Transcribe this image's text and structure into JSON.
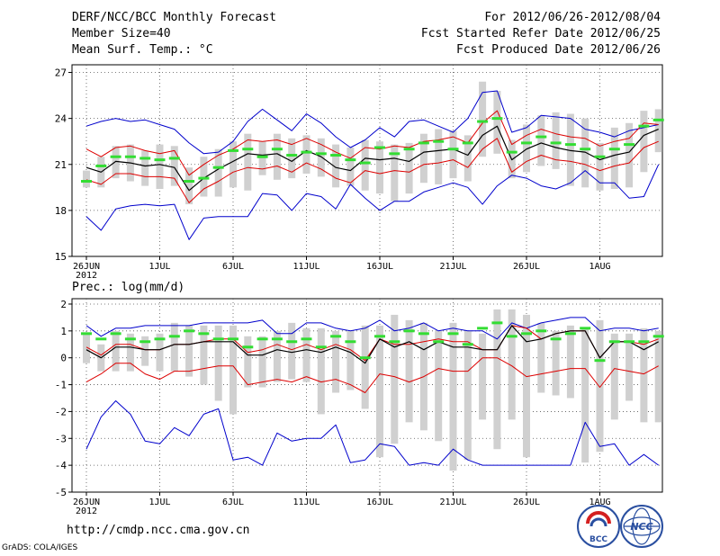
{
  "header": {
    "title": "DERF/NCC/BCC Monthly Forecast",
    "member_size": "Member Size=40",
    "variable": "Mean Surf. Temp.: °C",
    "period": "For 2012/06/26-2012/08/04",
    "fcst_started": "Fcst Started Refer Date 2012/06/25",
    "fcst_produced": "Fcst Produced Date 2012/06/26"
  },
  "footer": {
    "url": "http://cmdp.ncc.cma.gov.cn",
    "grads": "GrADS: COLA/IGES",
    "logo_left_text": "BCC",
    "logo_right_text": "NCC"
  },
  "colors": {
    "range": "#0000cc",
    "spread": "#dd0000",
    "mean": "#000000",
    "obs": "#33dd33",
    "box": "#d0d0d0",
    "grid": "#555555"
  },
  "chart_data": [
    {
      "type": "line",
      "title": "Mean Surf. Temp.: °C",
      "x_ticks": [
        "26JUN",
        "1JUL",
        "6JUL",
        "11JUL",
        "16JUL",
        "21JUL",
        "26JUL",
        "1AUG"
      ],
      "x_year_label": "2012",
      "ylim": [
        15,
        27.5
      ],
      "y_ticks": [
        15,
        18,
        21,
        24,
        27
      ],
      "days": 40,
      "max": [
        23.5,
        23.8,
        24.0,
        23.8,
        23.9,
        23.6,
        23.3,
        22.4,
        21.7,
        21.8,
        22.5,
        23.8,
        24.6,
        23.9,
        23.2,
        24.3,
        23.7,
        22.8,
        22.1,
        22.6,
        23.4,
        22.8,
        23.8,
        23.9,
        23.5,
        23.1,
        24.0,
        25.7,
        25.8,
        23.1,
        23.4,
        24.2,
        24.1,
        24.0,
        23.3,
        23.1,
        22.8,
        23.2,
        23.4,
        23.6
      ],
      "min": [
        17.6,
        16.7,
        18.1,
        18.3,
        18.4,
        18.3,
        18.4,
        16.1,
        17.5,
        17.6,
        17.6,
        17.6,
        19.1,
        19.0,
        18.0,
        19.1,
        18.9,
        18.1,
        19.7,
        18.8,
        18.0,
        18.6,
        18.6,
        19.2,
        19.5,
        19.8,
        19.5,
        18.4,
        19.6,
        20.3,
        20.1,
        19.6,
        19.4,
        19.8,
        20.6,
        19.8,
        19.8,
        18.8,
        18.9,
        21.0
      ],
      "upper": [
        22.0,
        21.5,
        22.1,
        22.2,
        21.9,
        21.7,
        21.9,
        20.3,
        21.0,
        21.6,
        22.0,
        22.6,
        22.5,
        22.6,
        22.3,
        22.7,
        22.3,
        21.8,
        21.4,
        22.1,
        22.0,
        22.2,
        22.1,
        22.5,
        22.6,
        22.8,
        22.4,
        23.7,
        24.5,
        22.3,
        22.9,
        23.3,
        23.0,
        22.8,
        22.7,
        22.2,
        22.5,
        22.7,
        23.7,
        23.6
      ],
      "mean": [
        20.8,
        20.5,
        21.2,
        21.1,
        20.9,
        21.0,
        20.8,
        19.3,
        20.1,
        20.7,
        21.2,
        21.7,
        21.6,
        21.7,
        21.2,
        21.9,
        21.5,
        20.8,
        20.6,
        21.4,
        21.3,
        21.4,
        21.2,
        21.8,
        21.9,
        22.0,
        21.6,
        22.9,
        23.5,
        21.3,
        22.0,
        22.4,
        22.1,
        21.9,
        21.8,
        21.3,
        21.6,
        21.8,
        22.9,
        23.3
      ],
      "lower": [
        20.0,
        19.7,
        20.4,
        20.4,
        20.2,
        20.2,
        20.1,
        18.5,
        19.4,
        19.9,
        20.5,
        20.8,
        20.7,
        20.9,
        20.5,
        21.1,
        20.7,
        20.1,
        19.8,
        20.6,
        20.4,
        20.6,
        20.5,
        21.0,
        21.1,
        21.3,
        20.8,
        22.0,
        22.7,
        20.5,
        21.2,
        21.6,
        21.3,
        21.2,
        21.0,
        20.6,
        20.9,
        21.1,
        22.1,
        22.5
      ],
      "box_top": [
        20.6,
        21.5,
        22.2,
        22.3,
        21.9,
        22.3,
        22.2,
        20.8,
        21.5,
        22.0,
        22.5,
        23.0,
        22.5,
        23.0,
        22.7,
        22.9,
        22.7,
        22.3,
        22.1,
        22.6,
        22.5,
        22.3,
        22.4,
        23.0,
        23.3,
        23.2,
        22.9,
        26.4,
        25.8,
        22.6,
        23.6,
        24.2,
        24.4,
        24.3,
        24.0,
        22.4,
        23.4,
        23.7,
        24.5,
        24.6
      ],
      "box_bottom": [
        19.5,
        19.5,
        20.1,
        19.9,
        19.6,
        19.4,
        19.6,
        18.4,
        18.9,
        18.9,
        19.5,
        19.3,
        20.3,
        20.0,
        20.1,
        20.4,
        20.2,
        19.5,
        19.6,
        19.3,
        19.1,
        18.6,
        19.1,
        19.8,
        19.7,
        20.1,
        19.9,
        21.5,
        21.7,
        20.1,
        20.5,
        20.9,
        20.7,
        19.6,
        19.5,
        19.3,
        19.4,
        19.5,
        20.5,
        21.8
      ],
      "obs": [
        19.9,
        20.9,
        21.5,
        21.5,
        21.4,
        21.3,
        21.4,
        19.9,
        20.1,
        20.8,
        21.9,
        22.0,
        21.5,
        22.0,
        21.6,
        21.8,
        21.7,
        21.6,
        21.3,
        21.1,
        22.1,
        21.7,
        22.0,
        22.4,
        22.5,
        22.0,
        22.4,
        23.8,
        24.0,
        21.8,
        22.4,
        22.8,
        22.4,
        22.3,
        22.0,
        21.5,
        22.0,
        22.3,
        23.5,
        23.9
      ]
    },
    {
      "type": "line",
      "title": "Prec.: log(mm/d)",
      "x_ticks": [
        "26JUN",
        "1JUL",
        "6JUL",
        "11JUL",
        "16JUL",
        "21JUL",
        "26JUL",
        "1AUG"
      ],
      "x_year_label": "2012",
      "ylim": [
        -5,
        2.2
      ],
      "y_ticks": [
        -5,
        -4,
        -3,
        -2,
        -1,
        0,
        1,
        2
      ],
      "days": 40,
      "max": [
        1.2,
        0.8,
        1.1,
        1.1,
        1.2,
        1.2,
        1.2,
        1.2,
        1.3,
        1.3,
        1.3,
        1.3,
        1.4,
        0.9,
        0.9,
        1.3,
        1.3,
        1.1,
        1.0,
        1.1,
        1.4,
        1.0,
        1.1,
        1.3,
        1.0,
        1.1,
        1.0,
        1.0,
        0.7,
        1.3,
        1.1,
        1.3,
        1.4,
        1.5,
        1.5,
        1.0,
        1.1,
        1.1,
        1.0,
        1.1
      ],
      "min": [
        -3.4,
        -2.2,
        -1.6,
        -2.1,
        -3.1,
        -3.2,
        -2.6,
        -2.9,
        -2.1,
        -1.9,
        -3.8,
        -3.7,
        -4.0,
        -2.8,
        -3.1,
        -3.0,
        -3.0,
        -2.5,
        -3.9,
        -3.8,
        -3.2,
        -3.3,
        -4.0,
        -3.9,
        -4.0,
        -3.4,
        -3.8,
        -4.0,
        -4.0,
        -4.0,
        -4.0,
        -4.0,
        -4.0,
        -4.0,
        -2.4,
        -3.3,
        -3.2,
        -4.0,
        -3.6,
        -4.0
      ],
      "upper": [
        0.4,
        0.1,
        0.5,
        0.5,
        0.3,
        0.3,
        0.5,
        0.5,
        0.6,
        0.7,
        0.7,
        0.2,
        0.3,
        0.5,
        0.3,
        0.5,
        0.3,
        0.5,
        0.3,
        -0.1,
        0.7,
        0.5,
        0.5,
        0.6,
        0.7,
        0.6,
        0.6,
        0.3,
        0.3,
        1.2,
        1.1,
        0.7,
        0.9,
        1.0,
        1.0,
        0.0,
        0.6,
        0.6,
        0.5,
        0.7
      ],
      "mean": [
        0.3,
        0.0,
        0.4,
        0.4,
        0.3,
        0.3,
        0.5,
        0.5,
        0.6,
        0.6,
        0.6,
        0.1,
        0.1,
        0.3,
        0.2,
        0.3,
        0.2,
        0.4,
        0.2,
        -0.2,
        0.7,
        0.4,
        0.6,
        0.3,
        0.6,
        0.4,
        0.4,
        0.3,
        0.3,
        1.2,
        0.6,
        0.7,
        0.9,
        1.0,
        1.0,
        0.0,
        0.6,
        0.6,
        0.3,
        0.6
      ],
      "lower": [
        -0.9,
        -0.6,
        -0.2,
        -0.2,
        -0.6,
        -0.8,
        -0.5,
        -0.5,
        -0.4,
        -0.3,
        -0.3,
        -1.0,
        -0.9,
        -0.8,
        -0.9,
        -0.7,
        -0.9,
        -0.8,
        -1.0,
        -1.3,
        -0.6,
        -0.7,
        -0.9,
        -0.7,
        -0.4,
        -0.5,
        -0.5,
        0.0,
        0.0,
        -0.3,
        -0.7,
        -0.6,
        -0.5,
        -0.4,
        -0.4,
        -1.1,
        -0.4,
        -0.5,
        -0.6,
        -0.3
      ],
      "box_top": [
        0.9,
        0.5,
        1.0,
        0.9,
        0.8,
        0.9,
        1.3,
        1.2,
        1.2,
        1.2,
        1.2,
        0.8,
        0.8,
        1.0,
        1.3,
        1.1,
        1.1,
        1.0,
        1.0,
        1.2,
        1.2,
        1.6,
        1.4,
        1.3,
        1.0,
        1.3,
        1.0,
        0.9,
        1.8,
        1.8,
        1.6,
        1.3,
        1.0,
        1.2,
        1.1,
        1.4,
        0.9,
        0.9,
        1.1,
        1.0
      ],
      "box_bottom": [
        -0.2,
        -0.5,
        -0.5,
        -0.5,
        -0.3,
        -0.5,
        -0.5,
        -0.7,
        -1.0,
        -1.6,
        -2.1,
        -1.1,
        -1.1,
        -0.9,
        -0.8,
        -0.9,
        -2.1,
        -1.3,
        -1.2,
        -1.9,
        -3.7,
        -3.2,
        -2.4,
        -2.7,
        -3.1,
        -4.2,
        -3.8,
        -2.3,
        -3.4,
        -2.3,
        -3.7,
        -1.3,
        -1.4,
        -1.5,
        -3.9,
        -3.5,
        -2.3,
        -1.6,
        -2.4,
        -2.4
      ],
      "obs": [
        0.9,
        0.7,
        0.9,
        0.7,
        0.6,
        0.7,
        0.8,
        1.0,
        0.9,
        0.7,
        0.7,
        0.4,
        0.7,
        0.7,
        0.6,
        0.7,
        0.4,
        0.8,
        0.6,
        0.0,
        0.8,
        0.6,
        1.0,
        0.9,
        0.6,
        0.9,
        0.5,
        1.1,
        1.3,
        0.8,
        0.9,
        1.0,
        0.7,
        0.9,
        1.1,
        -0.1,
        0.6,
        0.6,
        0.6,
        0.8
      ]
    }
  ]
}
